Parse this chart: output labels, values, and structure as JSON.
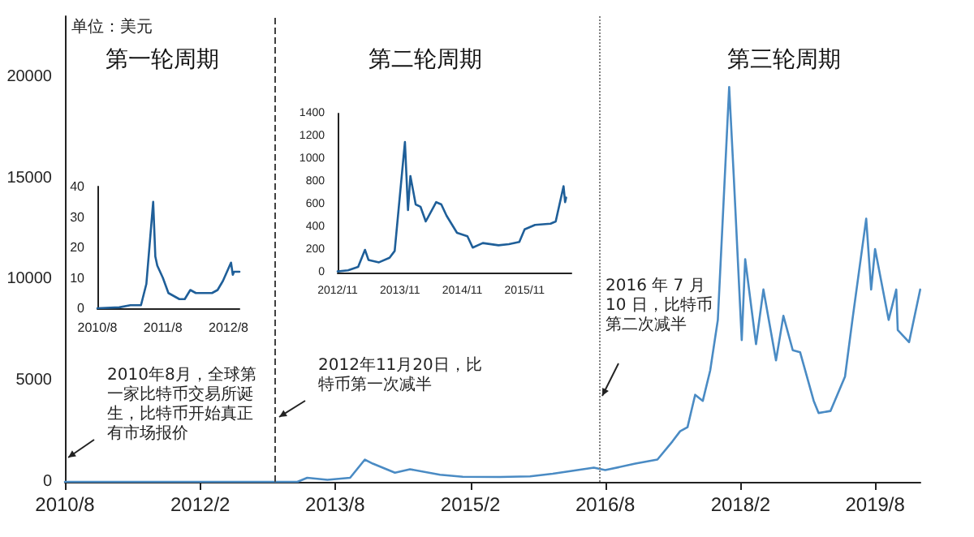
{
  "chart_data": [
    {
      "type": "line",
      "ylabel": "单位：美元",
      "x": [
        "2010-08",
        "2011-06",
        "2012-06",
        "2012-11",
        "2013-03",
        "2013-04-10",
        "2013-07",
        "2013-10",
        "2013-11-30",
        "2014-01",
        "2014-04",
        "2014-06",
        "2014-10",
        "2015-01",
        "2015-06",
        "2015-10",
        "2016-01",
        "2016-06-16",
        "2016-08",
        "2016-12",
        "2017-03",
        "2017-05",
        "2017-06",
        "2017-07",
        "2017-08",
        "2017-09",
        "2017-10",
        "2017-11",
        "2017-12-17",
        "2018-01-05",
        "2018-02-06",
        "2018-02-20",
        "2018-04-05",
        "2018-05-05",
        "2018-06-25",
        "2018-07-25",
        "2018-09",
        "2018-10",
        "2018-11-25",
        "2018-12-15",
        "2019-02",
        "2019-04",
        "2019-05",
        "2019-06-26",
        "2019-07-16",
        "2019-08",
        "2019-09-25",
        "2019-10-26",
        "2019-11",
        "2019-12-17",
        "2020-01-31"
      ],
      "values": [
        0,
        0,
        0,
        0,
        0,
        200,
        100,
        200,
        1100,
        900,
        450,
        620,
        350,
        250,
        240,
        270,
        400,
        700,
        580,
        900,
        1100,
        2000,
        2500,
        2700,
        4300,
        4000,
        5500,
        8000,
        19500,
        15000,
        7000,
        11000,
        6800,
        9500,
        6000,
        8200,
        6500,
        6400,
        4000,
        3400,
        3500,
        5200,
        8000,
        13000,
        9500,
        11500,
        8000,
        9500,
        7500,
        6900,
        9500
      ],
      "color": "#4a8bc4",
      "line_style": "solid",
      "marker": "none",
      "xlim": [
        "2010-08",
        "2020-02"
      ],
      "xticks": [
        {
          "value": "2010-08",
          "label": "2010/8"
        },
        {
          "value": "2012-02",
          "label": "2012/2"
        },
        {
          "value": "2013-08",
          "label": "2013/8"
        },
        {
          "value": "2015-02",
          "label": "2015/2"
        },
        {
          "value": "2016-08",
          "label": "2016/8"
        },
        {
          "value": "2018-02",
          "label": "2018/2"
        },
        {
          "value": "2019-08",
          "label": "2019/8"
        }
      ],
      "ylim": [
        0,
        23000
      ],
      "yticks": [
        0,
        5000,
        10000,
        15000,
        20000
      ],
      "grid": false,
      "ref_lines": [
        {
          "axis": "x",
          "value": "2012-11-28",
          "color": "#404040",
          "line_style": "dashed"
        },
        {
          "axis": "x",
          "value": "2016-07-10",
          "color": "#808080",
          "line_style": "dotted"
        }
      ],
      "annotations": [
        "第一轮周期",
        "第二轮周期",
        "第三轮周期",
        "2010年8月，全球第一家比特币交易所诞生，比特币开始真正有市场报价",
        "2012年11月20日，比特币第一次减半",
        "2016 年 7 月 10 日，比特币第二次减半"
      ]
    },
    {
      "type": "line",
      "x": [
        "2010-08",
        "2010-12",
        "2011-02",
        "2011-04",
        "2011-05",
        "2011-06-08",
        "2011-06-20",
        "2011-07",
        "2011-08",
        "2011-09",
        "2011-11",
        "2011-12",
        "2012-01",
        "2012-02",
        "2012-03",
        "2012-05",
        "2012-06",
        "2012-07",
        "2012-08-15",
        "2012-08-25",
        "2012-09",
        "2012-10"
      ],
      "values": [
        0,
        0.3,
        1,
        1,
        8,
        35,
        17,
        14,
        10,
        5,
        3,
        3,
        6,
        5,
        5,
        5,
        6,
        9,
        15,
        11,
        12,
        12
      ],
      "color": "#1f5f99",
      "line_style": "solid",
      "marker": "none",
      "xlim": [
        "2010-08",
        "2012-10"
      ],
      "xticks": [
        {
          "value": "2010-08",
          "label": "2010/8"
        },
        {
          "value": "2011-08",
          "label": "2011/8"
        },
        {
          "value": "2012-08",
          "label": "2012/8"
        }
      ],
      "ylim": [
        0,
        40
      ],
      "yticks": [
        0,
        10,
        20,
        30,
        40
      ],
      "grid": false
    },
    {
      "type": "line",
      "x": [
        "2012-11",
        "2013-01",
        "2013-03",
        "2013-04-10",
        "2013-05",
        "2013-07",
        "2013-09",
        "2013-10",
        "2013-11-30",
        "2013-12-18",
        "2014-01",
        "2014-02",
        "2014-03",
        "2014-04",
        "2014-06",
        "2014-07",
        "2014-08",
        "2014-10",
        "2014-12",
        "2015-01",
        "2015-03",
        "2015-06",
        "2015-08",
        "2015-10",
        "2015-11",
        "2016-01",
        "2016-04",
        "2016-05",
        "2016-06-16",
        "2016-06-25",
        "2016-07"
      ],
      "values": [
        10,
        20,
        50,
        200,
        110,
        90,
        130,
        190,
        1150,
        550,
        850,
        600,
        580,
        450,
        620,
        600,
        500,
        350,
        320,
        220,
        260,
        240,
        250,
        270,
        380,
        420,
        430,
        450,
        760,
        620,
        660
      ],
      "color": "#1f5f99",
      "line_style": "solid",
      "marker": "none",
      "xlim": [
        "2012-11",
        "2016-08"
      ],
      "xticks": [
        {
          "value": "2012-11",
          "label": "2012/11"
        },
        {
          "value": "2013-11",
          "label": "2013/11"
        },
        {
          "value": "2014-11",
          "label": "2014/11"
        },
        {
          "value": "2015-11",
          "label": "2015/11"
        }
      ],
      "ylim": [
        0,
        1400
      ],
      "yticks": [
        0,
        200,
        400,
        600,
        800,
        1000,
        1200,
        1400
      ],
      "grid": false
    }
  ]
}
